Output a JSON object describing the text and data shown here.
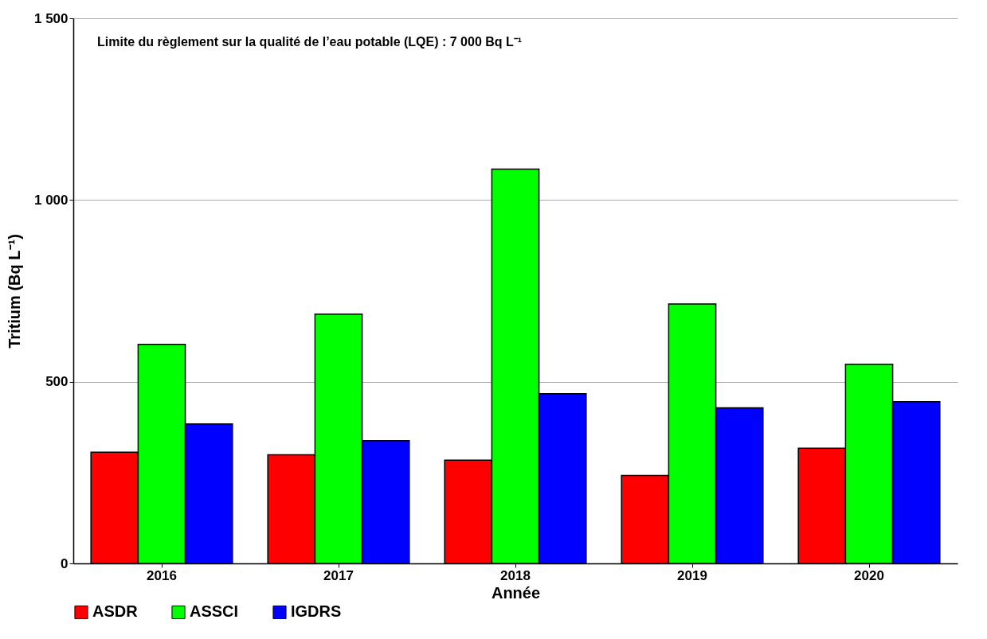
{
  "chart_data": {
    "type": "bar",
    "xlabel": "Année",
    "ylabel": "Tritium (Bq L⁻¹)",
    "annotations": [
      "Limite du règlement sur la qualité de l’eau potable (LQE) : 7 000 Bq L⁻¹"
    ],
    "categories": [
      "2016",
      "2017",
      "2018",
      "2019",
      "2020"
    ],
    "series": [
      {
        "name": "ASDR",
        "color": "#ff0000",
        "values": [
          306,
          299,
          284,
          242,
          317
        ]
      },
      {
        "name": "ASSCI",
        "color": "#00ff00",
        "values": [
          603,
          686,
          1085,
          714,
          548
        ]
      },
      {
        "name": "IGDRS",
        "color": "#0000ff",
        "values": [
          384,
          338,
          467,
          428,
          445
        ]
      }
    ],
    "ylim": [
      0,
      1500
    ],
    "yticks": [
      0,
      500,
      {
        "value": 1000,
        "label": "1 000"
      },
      {
        "value": 1500,
        "label": "1 500"
      }
    ],
    "grid": "y",
    "legend": "bottom"
  }
}
